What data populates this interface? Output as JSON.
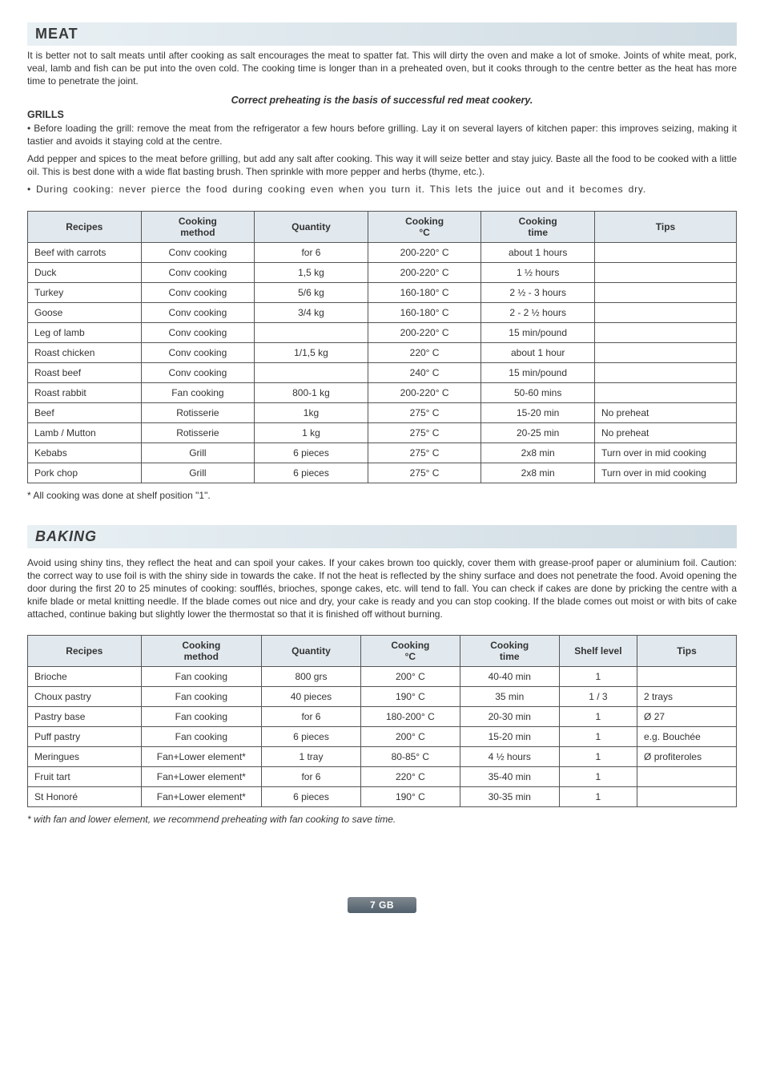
{
  "meat": {
    "heading": "MEAT",
    "intro": "It is better not to salt meats until after cooking as salt encourages the meat to spatter fat. This will dirty the oven and make a lot of smoke. Joints of white meat, pork, veal, lamb and fish can be put into the oven cold. The cooking time is longer than in a preheated oven, but it cooks through to the centre better as the heat has more time to penetrate the joint.",
    "emph": "Correct preheating is the basis of successful red meat cookery.",
    "grills_label": "GRILLS",
    "bullet1": "• Before loading the grill: remove the meat from the refrigerator a few hours before grilling. Lay it on several layers of kitchen paper: this improves seizing, making it tastier and avoids it staying cold at the centre.",
    "bullet1b": "Add pepper and spices to the meat before grilling, but add any salt after cooking. This way it will seize better and stay juicy. Baste all the food to be cooked with a little oil. This is best done with a wide flat basting brush. Then sprinkle with more pepper and herbs (thyme, etc.).",
    "bullet2": "• During cooking: never pierce the food during cooking even when you turn it. This lets the juice out and it becomes dry.",
    "columns": [
      "Recipes",
      "Cooking method",
      "Quantity",
      "Cooking °C",
      "Cooking time",
      "Tips"
    ],
    "rows": [
      [
        "Beef with carrots",
        "Conv cooking",
        "for 6",
        "200-220° C",
        "about 1 hours",
        ""
      ],
      [
        "Duck",
        "Conv cooking",
        "1,5 kg",
        "200-220° C",
        "1 ½ hours",
        ""
      ],
      [
        "Turkey",
        "Conv cooking",
        "5/6 kg",
        "160-180° C",
        "2 ½ - 3 hours",
        ""
      ],
      [
        "Goose",
        "Conv cooking",
        "3/4 kg",
        "160-180° C",
        "2 - 2 ½  hours",
        ""
      ],
      [
        "Leg of lamb",
        "Conv cooking",
        "",
        "200-220° C",
        "15 min/pound",
        ""
      ],
      [
        "Roast chicken",
        "Conv cooking",
        "1/1,5 kg",
        "220° C",
        "about 1 hour",
        ""
      ],
      [
        "Roast beef",
        "Conv cooking",
        "",
        "240° C",
        "15 min/pound",
        ""
      ],
      [
        "Roast rabbit",
        "Fan cooking",
        "800-1 kg",
        "200-220° C",
        "50-60 mins",
        ""
      ],
      [
        "Beef",
        "Rotisserie",
        "1kg",
        "275° C",
        "15-20 min",
        "No preheat"
      ],
      [
        "Lamb / Mutton",
        "Rotisserie",
        "1 kg",
        "275° C",
        "20-25 min",
        "No preheat"
      ],
      [
        "Kebabs",
        "Grill",
        "6 pieces",
        "275° C",
        "2x8 min",
        "Turn over in mid cooking"
      ],
      [
        "Pork chop",
        "Grill",
        "6 pieces",
        "275° C",
        "2x8 min",
        "Turn over in mid cooking"
      ]
    ],
    "footnote": "* All cooking was done at shelf position \"1\"."
  },
  "baking": {
    "heading": "BAKING",
    "intro": "Avoid using shiny tins, they reflect the heat and can spoil your cakes. If your cakes brown too quickly, cover them with grease-proof paper or aluminium foil. Caution: the correct way to use foil is with the shiny side in towards the cake. If not the heat is reflected by the shiny surface and does not penetrate the food. Avoid opening the door during the first 20 to 25 minutes of cooking: soufflés, brioches, sponge cakes, etc. will tend to fall. You can check if cakes are done by pricking the centre with a knife blade or metal knitting needle. If the blade comes out nice and dry, your cake is ready and you can stop cooking. If the blade comes out moist or with bits of cake attached, continue baking but slightly lower the thermostat so that it is finished off without burning.",
    "columns": [
      "Recipes",
      "Cooking method",
      "Quantity",
      "Cooking °C",
      "Cooking time",
      "Shelf level",
      "Tips"
    ],
    "rows": [
      [
        "Brioche",
        "Fan cooking",
        "800 grs",
        "200° C",
        "40-40 min",
        "1",
        ""
      ],
      [
        "Choux pastry",
        "Fan cooking",
        "40 pieces",
        "190° C",
        "35 min",
        "1 / 3",
        "2 trays"
      ],
      [
        "Pastry base",
        "Fan cooking",
        "for 6",
        "180-200° C",
        "20-30 min",
        "1",
        "Ø 27"
      ],
      [
        "Puff pastry",
        "Fan cooking",
        "6 pieces",
        "200° C",
        "15-20 min",
        "1",
        "e.g. Bouchée"
      ],
      [
        "Meringues",
        "Fan+Lower element*",
        "1 tray",
        "80-85° C",
        "4 ½ hours",
        "1",
        "Ø profiteroles"
      ],
      [
        "Fruit tart",
        "Fan+Lower element*",
        "for 6",
        "220° C",
        "35-40 min",
        "1",
        ""
      ],
      [
        "St Honoré",
        "Fan+Lower element*",
        "6 pieces",
        "190° C",
        "30-35 min",
        "1",
        ""
      ]
    ],
    "footnote": "* with fan and lower element, we recommend preheating with fan cooking to save time."
  },
  "page_label": "7 GB",
  "col_widths": {
    "meat": [
      "16%",
      "16%",
      "16%",
      "16%",
      "16%",
      "20%"
    ],
    "baking": [
      "16%",
      "17%",
      "14%",
      "14%",
      "14%",
      "11%",
      "14%"
    ]
  }
}
